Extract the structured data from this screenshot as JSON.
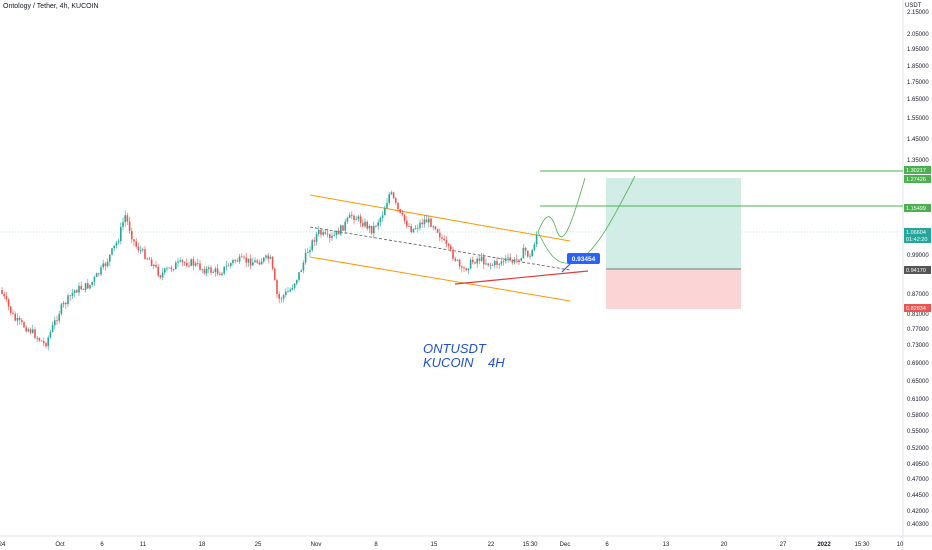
{
  "header": {
    "title": "Ontology / Tether, 4h, KUCOIN",
    "currency": "USDT"
  },
  "annotation": {
    "line1": "ONTUSDT",
    "line2": "KUCOIN    4H"
  },
  "colors": {
    "up": "#26a69a",
    "down": "#ef5350",
    "channel": "#ff9800",
    "target": "#4caf50",
    "target_fill": "#d1ede6",
    "stop_fill": "#fbd5d5",
    "support": "#e53935",
    "trend": "#555555",
    "projection": "#4caf50",
    "callout": "#2962ff"
  },
  "chart_data": {
    "type": "candlestick",
    "y_ticks": [
      2.15,
      2.05,
      1.95,
      1.85,
      1.75,
      1.65,
      1.55,
      1.45,
      1.35,
      1.25,
      0.99,
      0.87,
      0.81,
      0.77,
      0.73,
      0.69,
      0.65,
      0.61,
      0.58,
      0.55,
      0.52,
      0.495,
      0.47,
      0.445,
      0.42,
      0.403
    ],
    "y_tick_labels": [
      "2.15000",
      "2.05000",
      "1.95000",
      "1.85000",
      "1.75000",
      "1.65000",
      "1.55000",
      "1.45000",
      "1.35000",
      "1.25000",
      "0.99000",
      "0.87000",
      "0.81000",
      "0.77000",
      "0.73000",
      "0.69000",
      "0.65000",
      "0.61000",
      "0.58000",
      "0.55000",
      "0.52000",
      "0.49500",
      "0.47000",
      "0.44500",
      "0.42000",
      "0.40300"
    ],
    "x_labels": [
      "24",
      "Oct",
      "6",
      "11",
      "18",
      "25",
      "Nov",
      "8",
      "15",
      "22",
      "15:30",
      "Dec",
      "6",
      "13",
      "20",
      "27",
      "2022",
      "15:30",
      "10"
    ],
    "price_labels": [
      {
        "value": "2.20000",
        "color": "#ffffff",
        "text": "#131722"
      },
      {
        "value": "1.30217",
        "color": "#4caf50",
        "text": "#ffffff"
      },
      {
        "value": "1.27426",
        "color": "#4caf50",
        "text": "#ffffff"
      },
      {
        "value": "1.15499",
        "color": "#4caf50",
        "text": "#ffffff"
      },
      {
        "value": "1.06604",
        "color": "#26a69a",
        "text": "#ffffff"
      },
      {
        "value": "01:42:20",
        "color": "#26a69a",
        "text": "#ffffff"
      },
      {
        "value": "0.94170",
        "color": "#555555",
        "text": "#ffffff"
      },
      {
        "value": "0.82834",
        "color": "#ef5350",
        "text": "#ffffff"
      }
    ],
    "callout": "0.93454",
    "levels": {
      "last": 1.06604,
      "entry": 0.9417,
      "target1": 1.15499,
      "target2": 1.27426,
      "target3": 1.30217,
      "stop": 0.82834
    }
  }
}
